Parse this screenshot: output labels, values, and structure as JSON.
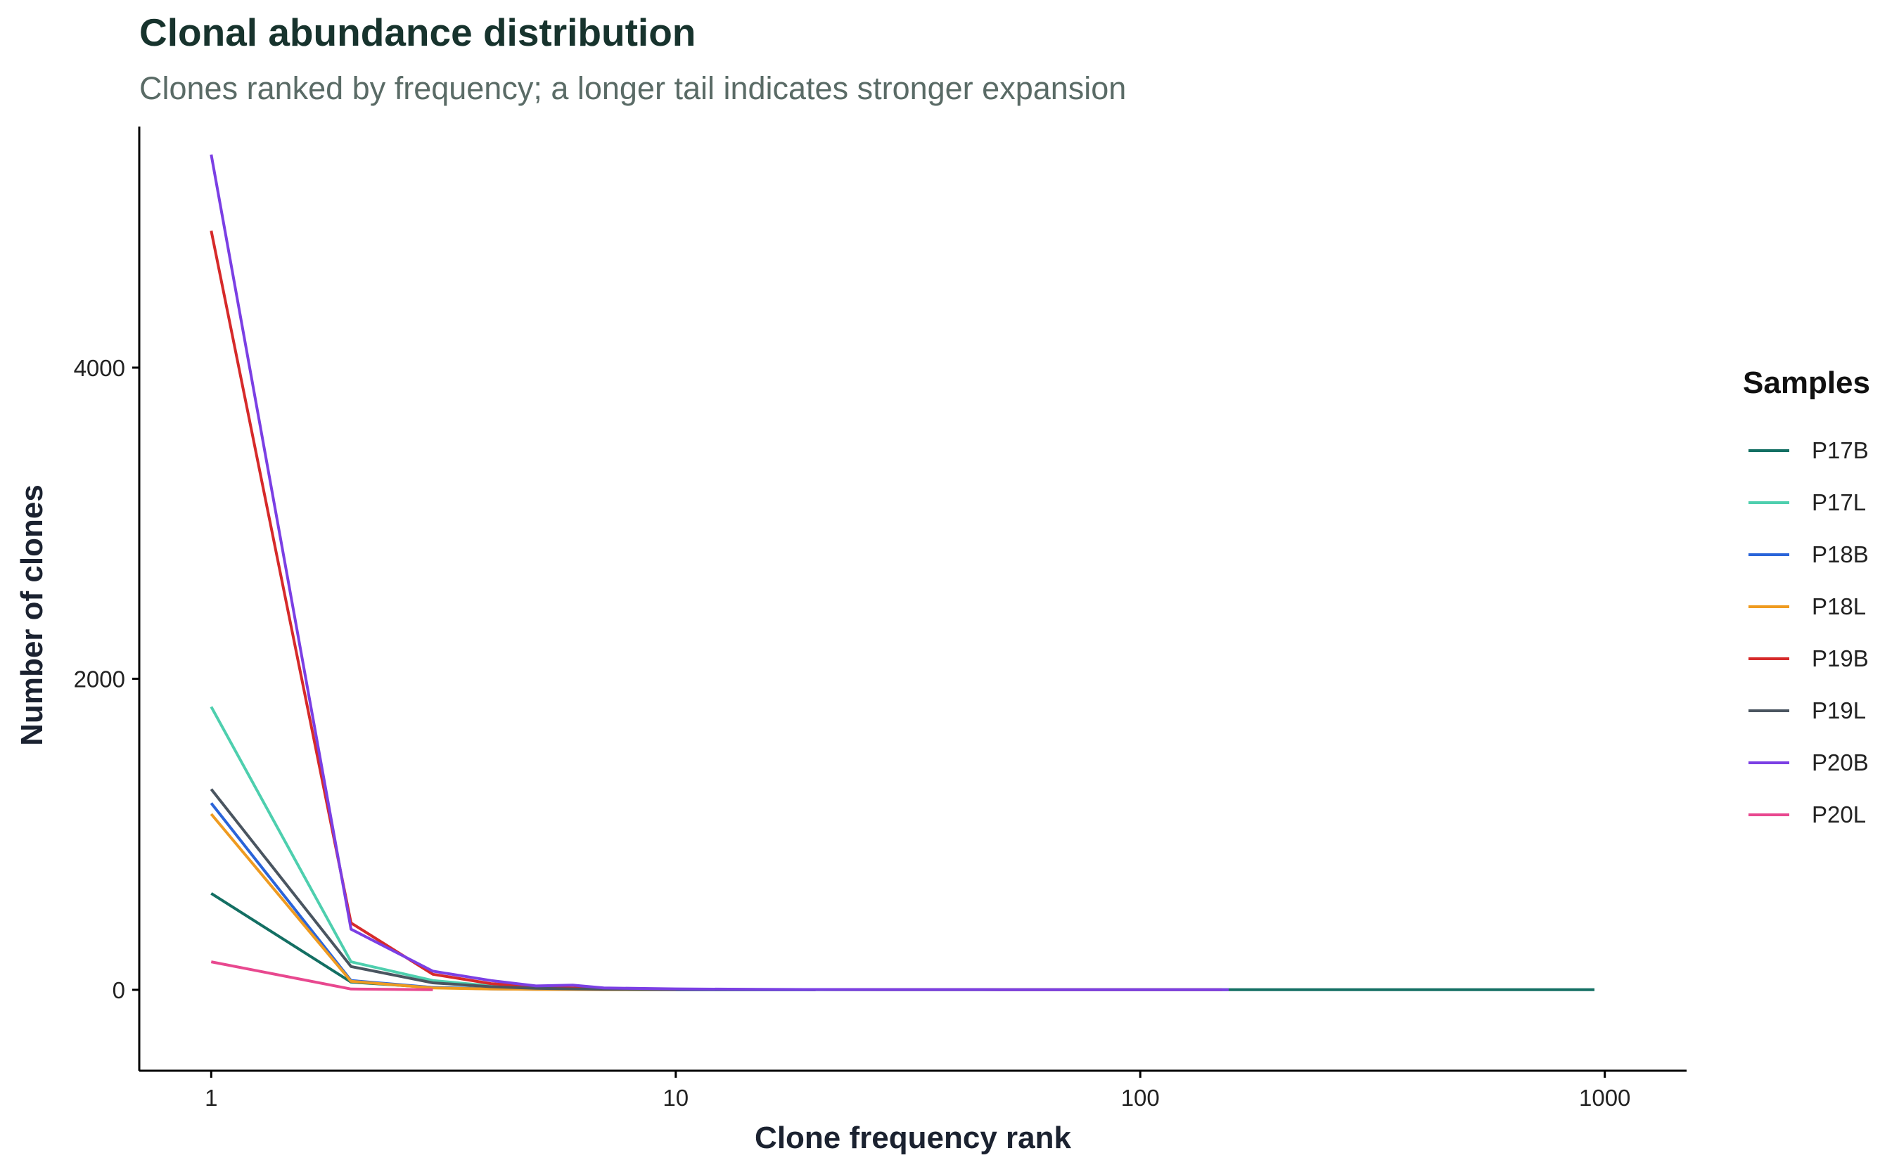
{
  "title": "Clonal abundance distribution",
  "subtitle": "Clones ranked by frequency; a longer tail indicates stronger expansion",
  "chart_data": {
    "type": "line",
    "title": "Clonal abundance distribution",
    "subtitle": "Clones ranked by frequency; a longer tail indicates stronger expansion",
    "xlabel": "Clone frequency rank",
    "ylabel": "Number of clones",
    "x_scale": "log10",
    "xlim": [
      0.7,
      1500
    ],
    "ylim": [
      -520,
      5550
    ],
    "x_ticks": [
      1,
      10,
      100,
      1000
    ],
    "x_tick_labels": [
      "1",
      "10",
      "100",
      "1000"
    ],
    "y_ticks": [
      0,
      2000,
      4000
    ],
    "y_tick_labels": [
      "0",
      "2000",
      "4000"
    ],
    "grid": false,
    "legend_title": "Samples",
    "legend_position": "right",
    "series": [
      {
        "name": "P17B",
        "color": "#136f63",
        "x": [
          1,
          2,
          3,
          4,
          5,
          6,
          7,
          10,
          20,
          50,
          100,
          200,
          500,
          950
        ],
        "y": [
          620,
          50,
          15,
          8,
          4,
          3,
          2,
          1,
          1,
          1,
          1,
          1,
          1,
          1
        ]
      },
      {
        "name": "P17L",
        "color": "#4ecfae",
        "x": [
          1,
          2,
          3,
          4,
          5,
          6,
          7,
          10,
          20,
          50
        ],
        "y": [
          1820,
          180,
          60,
          25,
          12,
          8,
          5,
          3,
          2,
          1
        ]
      },
      {
        "name": "P18B",
        "color": "#2a64d9",
        "x": [
          1,
          2,
          3,
          4,
          5,
          6,
          7,
          10,
          20
        ],
        "y": [
          1200,
          60,
          15,
          6,
          3,
          2,
          2,
          1,
          1
        ]
      },
      {
        "name": "P18L",
        "color": "#ef9b20",
        "x": [
          1,
          2,
          3,
          4,
          5,
          6,
          7,
          10
        ],
        "y": [
          1130,
          55,
          12,
          5,
          3,
          2,
          1,
          1
        ]
      },
      {
        "name": "P19B",
        "color": "#d62a2a",
        "x": [
          1,
          2,
          3,
          4,
          5,
          6,
          7,
          10,
          15,
          20,
          50,
          100,
          150
        ],
        "y": [
          4880,
          430,
          100,
          40,
          20,
          12,
          8,
          4,
          2,
          2,
          1,
          1,
          1
        ]
      },
      {
        "name": "P19L",
        "color": "#4a5560",
        "x": [
          1,
          2,
          3,
          4,
          5,
          6,
          7,
          10,
          20
        ],
        "y": [
          1290,
          150,
          45,
          20,
          10,
          6,
          4,
          2,
          1
        ]
      },
      {
        "name": "P20B",
        "color": "#7b3fe4",
        "x": [
          1,
          2,
          3,
          4,
          5,
          6,
          7,
          10,
          15,
          20,
          50,
          100,
          155
        ],
        "y": [
          5370,
          390,
          120,
          60,
          25,
          30,
          12,
          6,
          3,
          2,
          1,
          1,
          1
        ]
      },
      {
        "name": "P20L",
        "color": "#e8488f",
        "x": [
          1,
          2,
          3
        ],
        "y": [
          180,
          5,
          1
        ]
      }
    ]
  }
}
